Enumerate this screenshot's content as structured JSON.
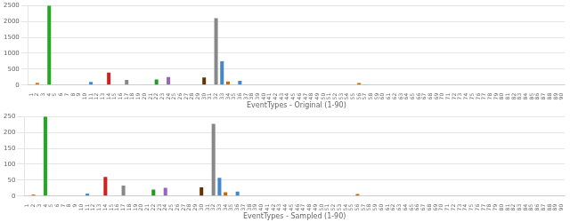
{
  "chart_data": [
    {
      "type": "bar",
      "x_label": "EventTypes - Original (1-90)",
      "categories": [
        "1",
        "2",
        "3",
        "4",
        "5",
        "6",
        "7",
        "8",
        "9",
        "10",
        "11",
        "12",
        "13",
        "14",
        "15",
        "16",
        "17",
        "18",
        "19",
        "20",
        "21",
        "22",
        "23",
        "24",
        "25",
        "26",
        "27",
        "28",
        "29",
        "30",
        "31",
        "32",
        "33",
        "34",
        "35",
        "36",
        "37",
        "38",
        "39",
        "40",
        "41",
        "42",
        "43",
        "44",
        "45",
        "46",
        "47",
        "48",
        "49",
        "50",
        "51",
        "52",
        "53",
        "54",
        "55",
        "56",
        "57",
        "58",
        "59",
        "60",
        "61",
        "62",
        "63",
        "64",
        "65",
        "66",
        "67",
        "68",
        "69",
        "70",
        "71",
        "72",
        "73",
        "74",
        "75",
        "76",
        "77",
        "78",
        "79",
        "80",
        "81",
        "82",
        "83",
        "84",
        "85",
        "86",
        "87",
        "88",
        "89",
        "90"
      ],
      "values": [
        0,
        70,
        0,
        2500,
        0,
        0,
        0,
        0,
        0,
        0,
        100,
        0,
        0,
        390,
        0,
        0,
        160,
        0,
        0,
        0,
        0,
        175,
        0,
        250,
        0,
        0,
        0,
        0,
        0,
        240,
        0,
        2100,
        750,
        110,
        0,
        130,
        0,
        0,
        0,
        0,
        0,
        0,
        0,
        0,
        0,
        0,
        0,
        0,
        0,
        0,
        0,
        0,
        0,
        0,
        0,
        60,
        5,
        0,
        0,
        0,
        0,
        0,
        0,
        0,
        0,
        0,
        0,
        0,
        0,
        0,
        0,
        0,
        0,
        0,
        0,
        0,
        0,
        0,
        0,
        0,
        0,
        0,
        0,
        0,
        0,
        0,
        0,
        0,
        0,
        0
      ],
      "colors": [
        "#bbbbbb",
        "#e07020",
        "#bbbbbb",
        "#22aa22",
        "#bbbbbb",
        "#bbbbbb",
        "#bbbbbb",
        "#bbbbbb",
        "#bbbbbb",
        "#bbbbbb",
        "#4488cc",
        "#bbbbbb",
        "#bbbbbb",
        "#cc2222",
        "#bbbbbb",
        "#bbbbbb",
        "#888888",
        "#bbbbbb",
        "#bbbbbb",
        "#bbbbbb",
        "#bbbbbb",
        "#229922",
        "#bbbbbb",
        "#9966bb",
        "#bbbbbb",
        "#bbbbbb",
        "#bbbbbb",
        "#bbbbbb",
        "#bbbbbb",
        "#663300",
        "#bbbbbb",
        "#888888",
        "#4488cc",
        "#cc6600",
        "#bbbbbb",
        "#4488cc",
        "#bbbbbb",
        "#bbbbbb",
        "#bbbbbb",
        "#bbbbbb",
        "#bbbbbb",
        "#bbbbbb",
        "#bbbbbb",
        "#bbbbbb",
        "#bbbbbb",
        "#bbbbbb",
        "#bbbbbb",
        "#bbbbbb",
        "#bbbbbb",
        "#bbbbbb",
        "#bbbbbb",
        "#bbbbbb",
        "#bbbbbb",
        "#bbbbbb",
        "#bbbbbb",
        "#cc6600",
        "#e07020",
        "#bbbbbb",
        "#bbbbbb",
        "#bbbbbb",
        "#bbbbbb",
        "#bbbbbb",
        "#bbbbbb",
        "#bbbbbb",
        "#bbbbbb",
        "#bbbbbb",
        "#bbbbbb",
        "#bbbbbb",
        "#bbbbbb",
        "#bbbbbb",
        "#bbbbbb",
        "#bbbbbb",
        "#bbbbbb",
        "#bbbbbb",
        "#bbbbbb",
        "#bbbbbb",
        "#bbbbbb",
        "#bbbbbb",
        "#bbbbbb",
        "#bbbbbb",
        "#bbbbbb",
        "#bbbbbb",
        "#bbbbbb",
        "#bbbbbb",
        "#bbbbbb",
        "#bbbbbb",
        "#bbbbbb",
        "#bbbbbb",
        "#bbbbbb",
        "#bbbbbb"
      ],
      "ylim": [
        0,
        2500
      ],
      "yticks": [
        0,
        500,
        1000,
        1500,
        2000,
        2500
      ],
      "grid": true
    },
    {
      "type": "bar",
      "x_label": "EventTypes - Sampled (1-90)",
      "categories": [
        "1",
        "2",
        "3",
        "4",
        "5",
        "6",
        "7",
        "8",
        "9",
        "10",
        "11",
        "12",
        "13",
        "14",
        "15",
        "16",
        "17",
        "18",
        "19",
        "20",
        "21",
        "22",
        "23",
        "24",
        "25",
        "26",
        "27",
        "28",
        "29",
        "30",
        "31",
        "32",
        "33",
        "34",
        "35",
        "36",
        "37",
        "38",
        "39",
        "40",
        "41",
        "42",
        "43",
        "44",
        "45",
        "46",
        "47",
        "48",
        "49",
        "50",
        "51",
        "52",
        "53",
        "54",
        "55",
        "56",
        "57",
        "58",
        "59",
        "60",
        "61",
        "62",
        "63",
        "64",
        "65",
        "66",
        "67",
        "68",
        "69",
        "70",
        "71",
        "72",
        "73",
        "74",
        "75",
        "76",
        "77",
        "78",
        "79",
        "80",
        "81",
        "82",
        "83",
        "84",
        "85",
        "86",
        "87",
        "88",
        "89",
        "90"
      ],
      "values": [
        0,
        5,
        0,
        250,
        0,
        0,
        0,
        0,
        0,
        0,
        8,
        0,
        0,
        60,
        0,
        0,
        33,
        0,
        0,
        0,
        0,
        20,
        0,
        26,
        0,
        0,
        0,
        0,
        0,
        27,
        0,
        227,
        57,
        12,
        0,
        14,
        0,
        0,
        0,
        0,
        0,
        0,
        0,
        0,
        0,
        0,
        0,
        0,
        0,
        0,
        0,
        0,
        0,
        0,
        0,
        6,
        0,
        0,
        0,
        0,
        0,
        0,
        0,
        0,
        0,
        0,
        0,
        0,
        0,
        0,
        0,
        0,
        0,
        0,
        0,
        0,
        0,
        0,
        0,
        0,
        0,
        0,
        0,
        0,
        0,
        0,
        0,
        0,
        0,
        0
      ],
      "colors": [
        "#bbbbbb",
        "#e07020",
        "#bbbbbb",
        "#22aa22",
        "#bbbbbb",
        "#bbbbbb",
        "#bbbbbb",
        "#bbbbbb",
        "#bbbbbb",
        "#bbbbbb",
        "#4488cc",
        "#bbbbbb",
        "#bbbbbb",
        "#cc2222",
        "#bbbbbb",
        "#bbbbbb",
        "#888888",
        "#bbbbbb",
        "#bbbbbb",
        "#bbbbbb",
        "#bbbbbb",
        "#229922",
        "#bbbbbb",
        "#9966bb",
        "#bbbbbb",
        "#bbbbbb",
        "#bbbbbb",
        "#bbbbbb",
        "#bbbbbb",
        "#663300",
        "#bbbbbb",
        "#888888",
        "#4488cc",
        "#cc6600",
        "#bbbbbb",
        "#4488cc",
        "#bbbbbb",
        "#bbbbbb",
        "#bbbbbb",
        "#bbbbbb",
        "#bbbbbb",
        "#bbbbbb",
        "#bbbbbb",
        "#bbbbbb",
        "#bbbbbb",
        "#bbbbbb",
        "#bbbbbb",
        "#bbbbbb",
        "#bbbbbb",
        "#bbbbbb",
        "#bbbbbb",
        "#bbbbbb",
        "#bbbbbb",
        "#bbbbbb",
        "#bbbbbb",
        "#cc6600",
        "#e07020",
        "#bbbbbb",
        "#bbbbbb",
        "#bbbbbb",
        "#bbbbbb",
        "#bbbbbb",
        "#bbbbbb",
        "#bbbbbb",
        "#bbbbbb",
        "#bbbbbb",
        "#bbbbbb",
        "#bbbbbb",
        "#bbbbbb",
        "#bbbbbb",
        "#bbbbbb",
        "#bbbbbb",
        "#bbbbbb",
        "#bbbbbb",
        "#bbbbbb",
        "#bbbbbb",
        "#bbbbbb",
        "#bbbbbb",
        "#bbbbbb",
        "#bbbbbb",
        "#bbbbbb",
        "#bbbbbb",
        "#bbbbbb",
        "#bbbbbb",
        "#bbbbbb",
        "#bbbbbb",
        "#bbbbbb",
        "#bbbbbb",
        "#bbbbbb",
        "#bbbbbb"
      ],
      "ylim": [
        0,
        250
      ],
      "yticks": [
        0,
        50,
        100,
        150,
        200,
        250
      ],
      "grid": true
    }
  ]
}
